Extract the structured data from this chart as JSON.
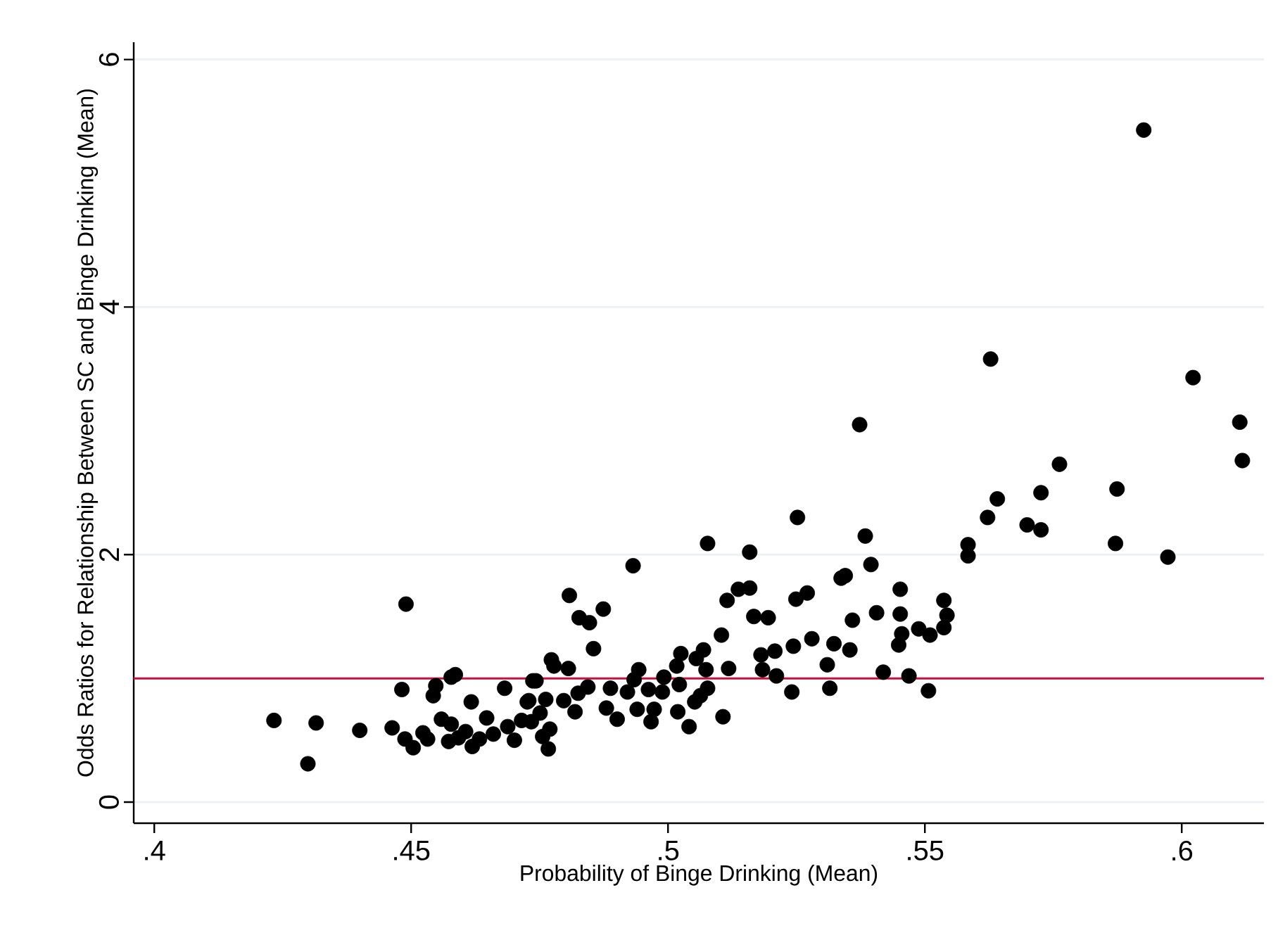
{
  "chart_data": {
    "type": "scatter",
    "xlabel": "Probability of Binge Drinking (Mean)",
    "ylabel": "Odds Ratios for Relationship Between SC and Binge Drinking (Mean)",
    "xlim": [
      0.396,
      0.616
    ],
    "ylim": [
      -0.17,
      6.14
    ],
    "xticks": [
      {
        "value": 0.4,
        "label": ".4"
      },
      {
        "value": 0.45,
        "label": ".45"
      },
      {
        "value": 0.5,
        "label": ".5"
      },
      {
        "value": 0.55,
        "label": ".55"
      },
      {
        "value": 0.6,
        "label": ".6"
      }
    ],
    "yticks": [
      0,
      2,
      4,
      6
    ],
    "grid": "y",
    "marker": "circle",
    "ref_lines": [
      {
        "axis": "y",
        "value": 1,
        "color": "#c8103c"
      }
    ],
    "series": [
      {
        "color": "#000000",
        "x": [
          0.449,
          0.4233,
          0.4315,
          0.4299,
          0.44,
          0.4463,
          0.4482,
          0.4488,
          0.4504,
          0.4532,
          0.4543,
          0.4548,
          0.4578,
          0.4586,
          0.4617,
          0.4682,
          0.4737,
          0.4726,
          0.4559,
          0.4578,
          0.4606,
          0.4633,
          0.4647,
          0.466,
          0.4688,
          0.4701,
          0.4715,
          0.4573,
          0.4619,
          0.4523,
          0.4592,
          0.5252,
          0.5077,
          0.5159,
          0.4932,
          0.4808,
          0.5137,
          0.5159,
          0.5115,
          0.5249,
          0.4827,
          0.4847,
          0.4874,
          0.5167,
          0.5195,
          0.5104,
          0.4855,
          0.4773,
          0.4778,
          0.4806,
          0.5025,
          0.5069,
          0.5055,
          0.5017,
          0.5074,
          0.5118,
          0.5181,
          0.5208,
          0.5184,
          0.5211,
          0.5244,
          0.4943,
          0.4743,
          0.4844,
          0.4888,
          0.4934,
          0.4992,
          0.5022,
          0.5077,
          0.5063,
          0.5052,
          0.4989,
          0.4962,
          0.4921,
          0.4825,
          0.4797,
          0.4762,
          0.4729,
          0.5241,
          0.488,
          0.4901,
          0.494,
          0.4973,
          0.4967,
          0.5019,
          0.5041,
          0.5107,
          0.4819,
          0.4751,
          0.4734,
          0.477,
          0.4767,
          0.4756,
          0.5373,
          0.6113,
          0.6118,
          0.5762,
          0.5641,
          0.5726,
          0.5874,
          0.5622,
          0.5699,
          0.5726,
          0.5871,
          0.5584,
          0.5584,
          0.5973,
          0.5384,
          0.5395,
          0.5337,
          0.5345,
          0.5271,
          0.5452,
          0.5537,
          0.5543,
          0.5537,
          0.551,
          0.5488,
          0.5455,
          0.5449,
          0.5452,
          0.5406,
          0.5359,
          0.528,
          0.5323,
          0.5354,
          0.531,
          0.5419,
          0.5469,
          0.5315,
          0.5507,
          0.5926,
          0.5628,
          0.6022
        ],
        "values": [
          1.6,
          0.66,
          0.64,
          0.31,
          0.58,
          0.6,
          0.91,
          0.51,
          0.44,
          0.51,
          0.86,
          0.94,
          1.01,
          1.03,
          0.81,
          0.92,
          0.98,
          0.81,
          0.67,
          0.63,
          0.57,
          0.51,
          0.68,
          0.55,
          0.61,
          0.5,
          0.66,
          0.49,
          0.45,
          0.56,
          0.52,
          2.3,
          2.09,
          2.02,
          1.91,
          1.67,
          1.72,
          1.73,
          1.63,
          1.64,
          1.49,
          1.45,
          1.56,
          1.5,
          1.49,
          1.35,
          1.24,
          1.15,
          1.1,
          1.08,
          1.2,
          1.23,
          1.16,
          1.1,
          1.07,
          1.08,
          1.19,
          1.22,
          1.07,
          1.02,
          1.26,
          1.07,
          0.98,
          0.93,
          0.92,
          0.99,
          1.01,
          0.95,
          0.92,
          0.86,
          0.81,
          0.89,
          0.91,
          0.89,
          0.88,
          0.82,
          0.83,
          0.82,
          0.89,
          0.76,
          0.67,
          0.75,
          0.75,
          0.65,
          0.73,
          0.61,
          0.69,
          0.73,
          0.72,
          0.65,
          0.59,
          0.43,
          0.53,
          3.05,
          3.07,
          2.76,
          2.73,
          2.45,
          2.5,
          2.53,
          2.3,
          2.24,
          2.2,
          2.09,
          2.08,
          1.99,
          1.98,
          2.15,
          1.92,
          1.81,
          1.83,
          1.69,
          1.72,
          1.63,
          1.51,
          1.41,
          1.35,
          1.4,
          1.36,
          1.27,
          1.52,
          1.53,
          1.47,
          1.32,
          1.28,
          1.23,
          1.11,
          1.05,
          1.02,
          0.92,
          0.9,
          5.43,
          3.58,
          3.43
        ]
      }
    ]
  }
}
